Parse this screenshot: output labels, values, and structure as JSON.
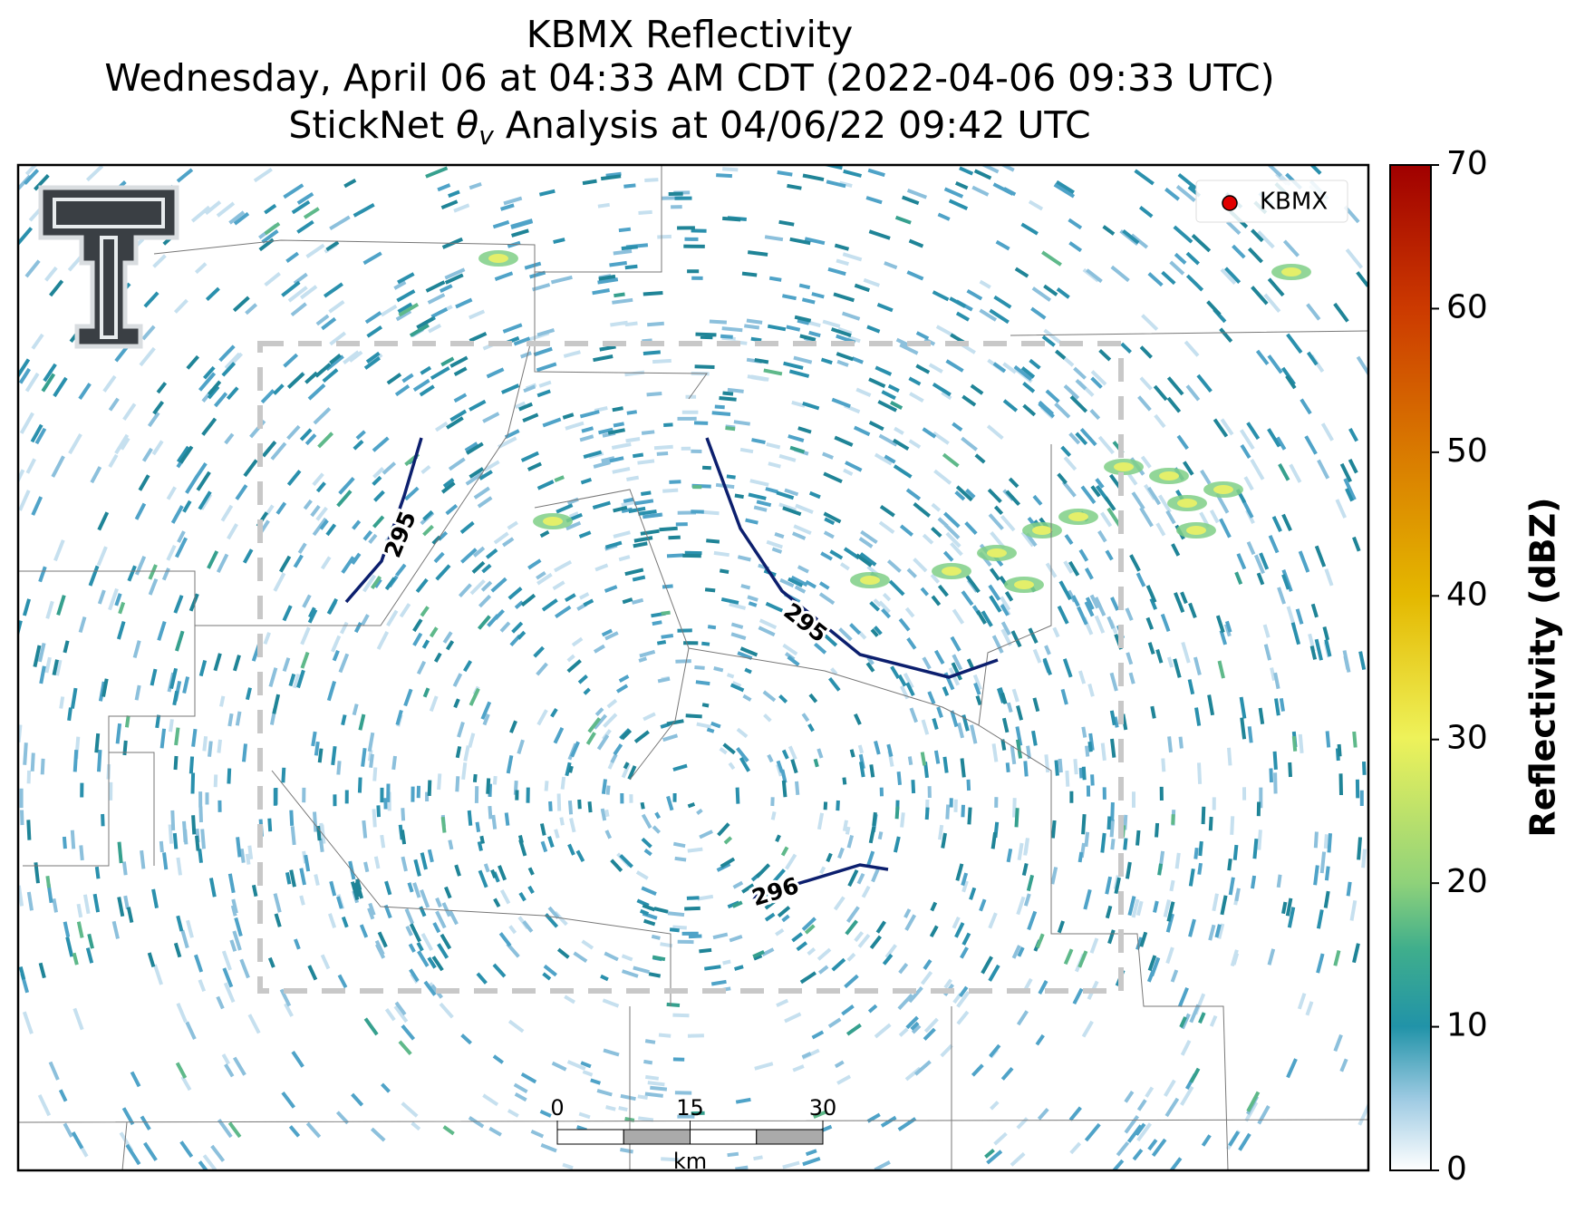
{
  "title": {
    "line1": "KBMX Reflectivity",
    "line2": "Wednesday, April 06 at 04:33 AM CDT (2022-04-06 09:33 UTC)",
    "line3_start": "StickNet ",
    "line3_symbol": "θ",
    "line3_sub": "v",
    "line3_end": " Analysis at 04/06/22 09:42 UTC"
  },
  "legend": {
    "label": "KBMX"
  },
  "contours": [
    {
      "label": "295"
    },
    {
      "label": "295"
    },
    {
      "label": "296"
    }
  ],
  "scale_bar": {
    "ticks": [
      0,
      15,
      30
    ],
    "unit": "km"
  },
  "colorbar": {
    "label": "Reflectivity (dBZ)",
    "lim": [
      0,
      70
    ],
    "ticks": [
      0,
      10,
      20,
      30,
      40,
      50,
      60,
      70
    ]
  }
}
